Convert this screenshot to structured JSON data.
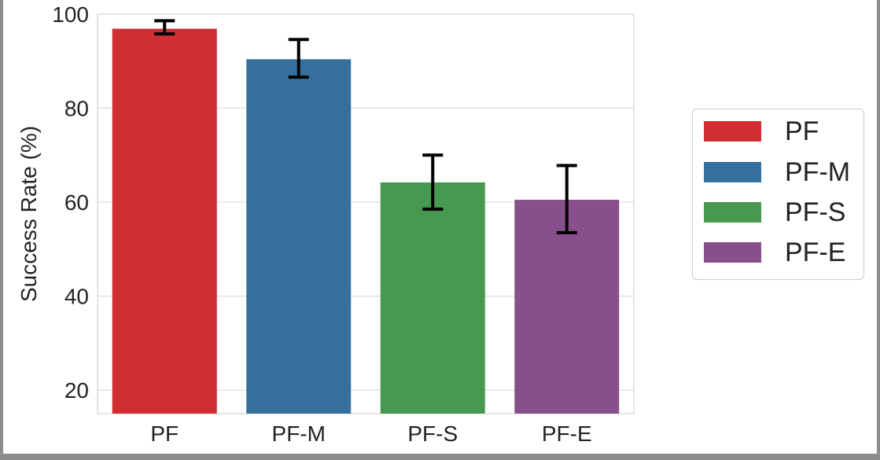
{
  "chart_data": {
    "type": "bar",
    "title": "",
    "xlabel": "",
    "ylabel": "Success Rate (%)",
    "categories": [
      "PF",
      "PF-M",
      "PF-S",
      "PF-E"
    ],
    "values": [
      96.9,
      90.4,
      64.2,
      60.5
    ],
    "error_low": [
      95.8,
      86.6,
      58.5,
      53.5
    ],
    "error_high": [
      98.6,
      94.6,
      70.0,
      67.8
    ],
    "ylim": [
      15,
      100
    ],
    "yticks": [
      20,
      40,
      60,
      80,
      100
    ],
    "colors": [
      "#d02e32",
      "#35709d",
      "#46994f",
      "#87508a"
    ],
    "legend": {
      "position": "right",
      "entries": [
        "PF",
        "PF-M",
        "PF-S",
        "PF-E"
      ]
    },
    "grid": true
  }
}
